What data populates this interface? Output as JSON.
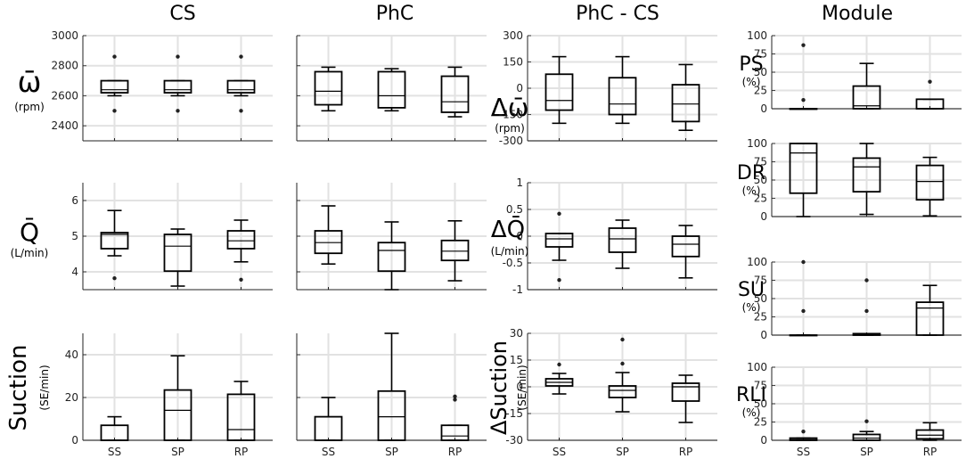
{
  "chart_data": {
    "type": "box",
    "title": "",
    "categories": [
      "SS",
      "SP",
      "RP"
    ],
    "column_titles": [
      "CS",
      "PhC",
      "PhC - CS",
      "Module"
    ],
    "row_labels": [
      {
        "main": "ω̄",
        "unit": "(rpm)"
      },
      {
        "main": "Q̄",
        "unit": "(L/min)"
      },
      {
        "main": "Suction",
        "unit": "(SE/min)"
      }
    ],
    "delta_row_labels": [
      {
        "main": "Δω̄",
        "unit": "(rpm)"
      },
      {
        "main": "ΔQ̄",
        "unit": "(L/min)"
      },
      {
        "main": "ΔSuction",
        "unit": "(SE/min)"
      }
    ],
    "module_labels": [
      {
        "main": "PS",
        "unit": "(%)"
      },
      {
        "main": "DR",
        "unit": "(%)"
      },
      {
        "main": "SU",
        "unit": "(%)"
      },
      {
        "main": "RLI",
        "unit": "(%)"
      }
    ],
    "panels": [
      {
        "id": "cs-speed",
        "ylim": [
          2300,
          3000
        ],
        "yticks": [
          2400,
          2600,
          2800,
          3000
        ],
        "tick_labels": [
          "2400",
          "2600",
          "2800",
          "3000"
        ],
        "boxes": [
          {
            "q1": 2620,
            "median": 2640,
            "q3": 2700,
            "whisker_low": 2600,
            "whisker_high": 2700,
            "outliers": [
              2500,
              2860
            ]
          },
          {
            "q1": 2620,
            "median": 2640,
            "q3": 2700,
            "whisker_low": 2600,
            "whisker_high": 2700,
            "outliers": [
              2500,
              2860
            ]
          },
          {
            "q1": 2620,
            "median": 2640,
            "q3": 2700,
            "whisker_low": 2600,
            "whisker_high": 2700,
            "outliers": [
              2500,
              2860
            ]
          }
        ]
      },
      {
        "id": "phc-speed",
        "ylim": [
          2300,
          3000
        ],
        "yticks": [
          2400,
          2600,
          2800,
          3000
        ],
        "tick_labels": [
          "",
          "",
          "",
          ""
        ],
        "boxes": [
          {
            "q1": 2540,
            "median": 2630,
            "q3": 2760,
            "whisker_low": 2500,
            "whisker_high": 2790,
            "outliers": []
          },
          {
            "q1": 2520,
            "median": 2600,
            "q3": 2760,
            "whisker_low": 2500,
            "whisker_high": 2780,
            "outliers": []
          },
          {
            "q1": 2490,
            "median": 2560,
            "q3": 2730,
            "whisker_low": 2460,
            "whisker_high": 2790,
            "outliers": []
          }
        ]
      },
      {
        "id": "delta-speed",
        "ylim": [
          -300,
          300
        ],
        "yticks": [
          -300,
          -150,
          0,
          150,
          300
        ],
        "tick_labels": [
          "-300",
          "-150",
          "0",
          "150",
          "300"
        ],
        "boxes": [
          {
            "q1": -125,
            "median": -70,
            "q3": 80,
            "whisker_low": -200,
            "whisker_high": 180,
            "outliers": []
          },
          {
            "q1": -150,
            "median": -90,
            "q3": 60,
            "whisker_low": -200,
            "whisker_high": 180,
            "outliers": []
          },
          {
            "q1": -190,
            "median": -90,
            "q3": 20,
            "whisker_low": -240,
            "whisker_high": 135,
            "outliers": []
          }
        ]
      },
      {
        "id": "module-ps",
        "ylim": [
          0,
          100
        ],
        "yticks": [
          0,
          25,
          50,
          75,
          100
        ],
        "tick_labels": [
          "0",
          "25",
          "50",
          "75",
          "100"
        ],
        "boxes": [
          {
            "q1": 0,
            "median": 0,
            "q3": 0,
            "whisker_low": 0,
            "whisker_high": 0,
            "outliers": [
              12,
              87
            ]
          },
          {
            "q1": 0,
            "median": 4,
            "q3": 31,
            "whisker_low": 0,
            "whisker_high": 62,
            "outliers": []
          },
          {
            "q1": 0,
            "median": 0,
            "q3": 13,
            "whisker_low": 0,
            "whisker_high": 13,
            "outliers": [
              37
            ]
          }
        ]
      },
      {
        "id": "cs-flow",
        "ylim": [
          3.5,
          6.5
        ],
        "yticks": [
          4,
          5,
          6
        ],
        "tick_labels": [
          "4",
          "5",
          "6"
        ],
        "boxes": [
          {
            "q1": 4.65,
            "median": 5.05,
            "q3": 5.1,
            "whisker_low": 4.45,
            "whisker_high": 5.72,
            "outliers": [
              3.82
            ]
          },
          {
            "q1": 4.02,
            "median": 4.72,
            "q3": 5.05,
            "whisker_low": 3.6,
            "whisker_high": 5.2,
            "outliers": []
          },
          {
            "q1": 4.65,
            "median": 4.87,
            "q3": 5.15,
            "whisker_low": 4.28,
            "whisker_high": 5.45,
            "outliers": [
              3.78
            ]
          }
        ]
      },
      {
        "id": "phc-flow",
        "ylim": [
          3.5,
          6.5
        ],
        "yticks": [
          4,
          5,
          6
        ],
        "tick_labels": [
          "",
          "",
          ""
        ],
        "boxes": [
          {
            "q1": 4.52,
            "median": 4.82,
            "q3": 5.15,
            "whisker_low": 4.22,
            "whisker_high": 5.85,
            "outliers": []
          },
          {
            "q1": 4.02,
            "median": 4.6,
            "q3": 4.82,
            "whisker_low": 3.5,
            "whisker_high": 5.4,
            "outliers": []
          },
          {
            "q1": 4.32,
            "median": 4.58,
            "q3": 4.88,
            "whisker_low": 3.75,
            "whisker_high": 5.43,
            "outliers": []
          }
        ]
      },
      {
        "id": "delta-flow",
        "ylim": [
          -1,
          1
        ],
        "yticks": [
          -1,
          -0.5,
          0,
          0.5,
          1
        ],
        "tick_labels": [
          "-1",
          "-0.5",
          "0",
          "0.5",
          "1"
        ],
        "boxes": [
          {
            "q1": -0.2,
            "median": -0.05,
            "q3": 0.05,
            "whisker_low": -0.45,
            "whisker_high": 0.05,
            "outliers": [
              0.42,
              -0.82
            ]
          },
          {
            "q1": -0.3,
            "median": -0.05,
            "q3": 0.15,
            "whisker_low": -0.6,
            "whisker_high": 0.3,
            "outliers": []
          },
          {
            "q1": -0.38,
            "median": -0.15,
            "q3": 0.0,
            "whisker_low": -0.78,
            "whisker_high": 0.2,
            "outliers": []
          }
        ]
      },
      {
        "id": "module-dr",
        "ylim": [
          0,
          100
        ],
        "yticks": [
          0,
          25,
          50,
          75,
          100
        ],
        "tick_labels": [
          "0",
          "25",
          "50",
          "75",
          "100"
        ],
        "boxes": [
          {
            "q1": 32,
            "median": 87,
            "q3": 100,
            "whisker_low": 0,
            "whisker_high": 100,
            "outliers": []
          },
          {
            "q1": 34,
            "median": 68,
            "q3": 80,
            "whisker_low": 3,
            "whisker_high": 100,
            "outliers": []
          },
          {
            "q1": 23,
            "median": 48,
            "q3": 70,
            "whisker_low": 1,
            "whisker_high": 81,
            "outliers": []
          }
        ]
      },
      {
        "id": "cs-suction",
        "ylim": [
          0,
          50
        ],
        "yticks": [
          0,
          20,
          40
        ],
        "tick_labels": [
          "0",
          "20",
          "40"
        ],
        "boxes": [
          {
            "q1": 0,
            "median": 0,
            "q3": 7,
            "whisker_low": 0,
            "whisker_high": 11,
            "outliers": []
          },
          {
            "q1": 0,
            "median": 14,
            "q3": 23.5,
            "whisker_low": 0,
            "whisker_high": 39.5,
            "outliers": []
          },
          {
            "q1": 0,
            "median": 5,
            "q3": 21.5,
            "whisker_low": 0,
            "whisker_high": 27.5,
            "outliers": []
          }
        ]
      },
      {
        "id": "phc-suction",
        "ylim": [
          0,
          50
        ],
        "yticks": [
          0,
          20,
          40
        ],
        "tick_labels": [
          "",
          "",
          ""
        ],
        "boxes": [
          {
            "q1": 0,
            "median": 0,
            "q3": 11,
            "whisker_low": 0,
            "whisker_high": 20,
            "outliers": []
          },
          {
            "q1": 0,
            "median": 11,
            "q3": 23,
            "whisker_low": 0,
            "whisker_high": 50,
            "outliers": []
          },
          {
            "q1": 0,
            "median": 2,
            "q3": 7,
            "whisker_low": 0,
            "whisker_high": 7,
            "outliers": [
              19,
              20.5
            ]
          }
        ]
      },
      {
        "id": "delta-suction",
        "ylim": [
          -30,
          30
        ],
        "yticks": [
          -30,
          -15,
          0,
          15,
          30
        ],
        "tick_labels": [
          "-30",
          "-15",
          "0",
          "15",
          "30"
        ],
        "boxes": [
          {
            "q1": 0.5,
            "median": 2.5,
            "q3": 4.5,
            "whisker_low": -4,
            "whisker_high": 7.5,
            "outliers": [
              12.5
            ]
          },
          {
            "q1": -6,
            "median": -2,
            "q3": 0.5,
            "whisker_low": -14,
            "whisker_high": 8,
            "outliers": [
              26.5,
              13
            ]
          },
          {
            "q1": -8,
            "median": 0,
            "q3": 2,
            "whisker_low": -20,
            "whisker_high": 6.5,
            "outliers": []
          }
        ]
      },
      {
        "id": "module-su",
        "ylim": [
          0,
          100
        ],
        "yticks": [
          0,
          25,
          50,
          75,
          100
        ],
        "tick_labels": [
          "0",
          "25",
          "50",
          "75",
          "100"
        ],
        "boxes": [
          {
            "q1": 0,
            "median": 0,
            "q3": 0,
            "whisker_low": 0,
            "whisker_high": 0,
            "outliers": [
              33,
              100
            ]
          },
          {
            "q1": 0,
            "median": 0,
            "q3": 2,
            "whisker_low": 0,
            "whisker_high": 2,
            "outliers": [
              75,
              33
            ]
          },
          {
            "q1": 0,
            "median": 37,
            "q3": 45,
            "whisker_low": 0,
            "whisker_high": 68,
            "outliers": []
          }
        ]
      },
      {
        "id": "module-rli",
        "ylim": [
          0,
          100
        ],
        "yticks": [
          0,
          25,
          50,
          75,
          100
        ],
        "tick_labels": [
          "0",
          "25",
          "50",
          "75",
          "100"
        ],
        "boxes": [
          {
            "q1": 0,
            "median": 1,
            "q3": 3,
            "whisker_low": 0,
            "whisker_high": 3,
            "outliers": [
              12
            ]
          },
          {
            "q1": 0,
            "median": 3,
            "q3": 8,
            "whisker_low": 0,
            "whisker_high": 12,
            "outliers": [
              26
            ]
          },
          {
            "q1": 2,
            "median": 7,
            "q3": 14,
            "whisker_low": 0,
            "whisker_high": 24,
            "outliers": []
          }
        ]
      }
    ]
  }
}
